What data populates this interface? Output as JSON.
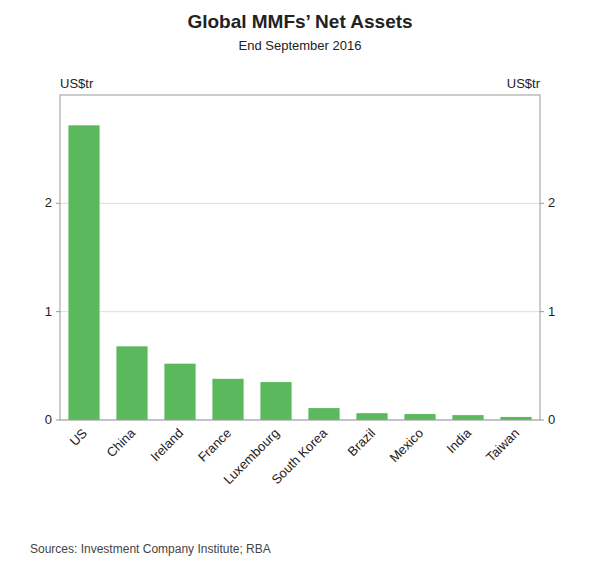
{
  "chart_data": {
    "type": "bar",
    "title": "Global MMFs’ Net Assets",
    "subtitle": "End September 2016",
    "y_label": "US$tr",
    "y2_label": "US$tr",
    "source": "Sources: Investment Company Institute; RBA",
    "categories": [
      "US",
      "China",
      "Ireland",
      "France",
      "Luxembourg",
      "South Korea",
      "Brazil",
      "Mexico",
      "India",
      "Taiwan"
    ],
    "values": [
      2.72,
      0.68,
      0.52,
      0.38,
      0.35,
      0.11,
      0.063,
      0.055,
      0.045,
      0.028
    ],
    "color": "#5cb85c",
    "ylim": [
      0,
      3.0
    ],
    "yticks": [
      0,
      1,
      2
    ],
    "y2lim": [
      0,
      3.0
    ],
    "y2ticks": [
      0,
      1,
      2
    ],
    "grid": true
  }
}
